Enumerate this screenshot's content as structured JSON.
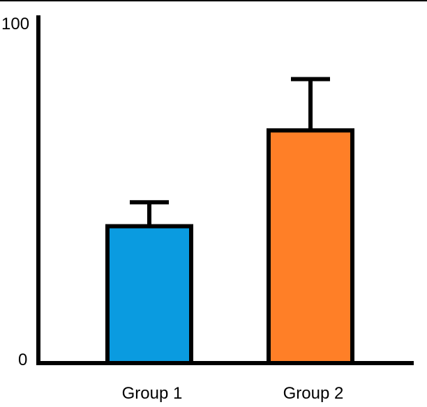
{
  "chart_data": {
    "type": "bar",
    "categories": [
      "Group 1",
      "Group 2"
    ],
    "values": [
      40,
      68
    ],
    "error_upper": [
      47,
      83
    ],
    "colors": [
      "#0A9BE0",
      "#FF7F27"
    ],
    "ylim": [
      0,
      100
    ],
    "yticks": [
      "0",
      "100"
    ],
    "grid": false,
    "legend": "none"
  }
}
